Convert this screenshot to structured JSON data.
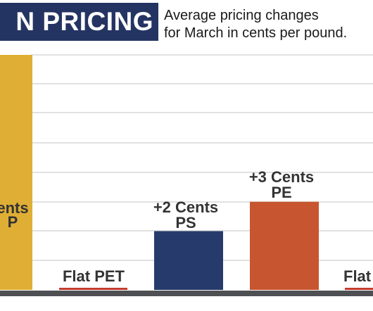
{
  "header": {
    "title": "N PRICING",
    "subtitle_line1": "Average pricing changes",
    "subtitle_line2": "for March in cents per pound."
  },
  "colors": {
    "title_bg": "#243462",
    "bar_pp": "#dfae35",
    "bar_pet": "#c43b2c",
    "bar_ps": "#263b6b",
    "bar_pe": "#c75630",
    "floor": "#4e5054",
    "grid": "#cfcfcf",
    "label": "#333333"
  },
  "chart_data": {
    "type": "bar",
    "title": "N PRICING",
    "subtitle": "Average pricing changes for March in cents per pound.",
    "categories": [
      "PP",
      "PET",
      "PS",
      "PE",
      ""
    ],
    "values": [
      8,
      0,
      2,
      3,
      0
    ],
    "ylim": [
      0,
      8
    ],
    "grid": true,
    "bar_labels": [
      [
        "ents",
        "P"
      ],
      [
        "Flat PET"
      ],
      [
        "+2 Cents",
        "PS"
      ],
      [
        "+3 Cents",
        "PE"
      ],
      [
        "Flat"
      ]
    ]
  }
}
